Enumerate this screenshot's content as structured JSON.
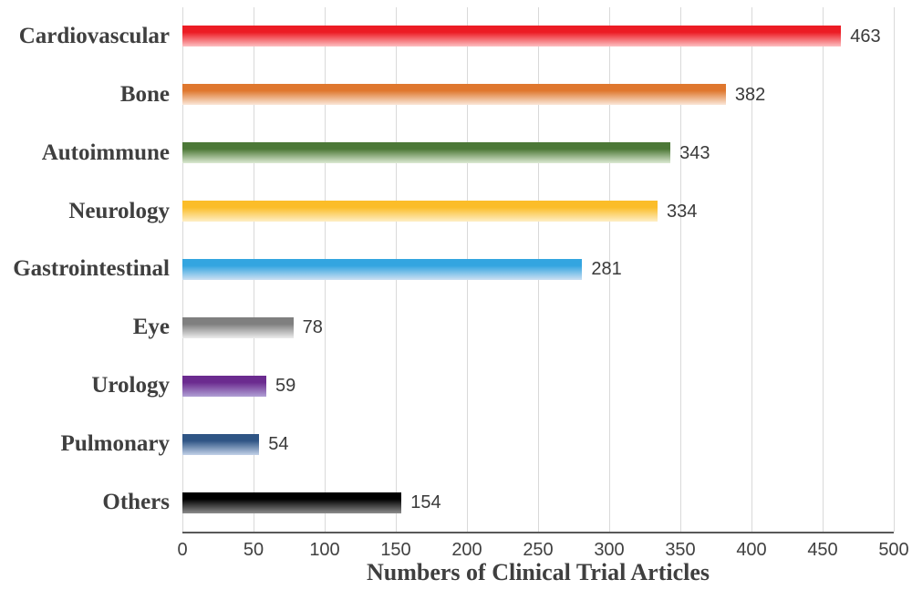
{
  "chart_data": {
    "type": "bar",
    "orientation": "horizontal",
    "title": "",
    "xlabel": "Numbers of Clinical Trial Articles",
    "ylabel": "",
    "xlim": [
      0,
      500
    ],
    "xticks": [
      0,
      50,
      100,
      150,
      200,
      250,
      300,
      350,
      400,
      450,
      500
    ],
    "grid": true,
    "legend": "none",
    "value_labels_shown": true,
    "categories": [
      "Cardiovascular",
      "Bone",
      "Autoimmune",
      "Neurology",
      "Gastrointestinal",
      "Eye",
      "Urology",
      "Pulmonary",
      "Others"
    ],
    "values": [
      463,
      382,
      343,
      334,
      281,
      78,
      59,
      54,
      154
    ],
    "value_labels": [
      "463",
      "382",
      "343",
      "334",
      "281",
      "78",
      "59",
      "54",
      "154"
    ],
    "bar_gradients": [
      {
        "top": "#ec1c24",
        "bottom": "#fdc0c2"
      },
      {
        "top": "#df772e",
        "bottom": "#fae7d8"
      },
      {
        "top": "#4c7837",
        "bottom": "#dcead3"
      },
      {
        "top": "#fbbd29",
        "bottom": "#feefc6"
      },
      {
        "top": "#33a5e0",
        "bottom": "#cde0f2"
      },
      {
        "top": "#7f7f7f",
        "bottom": "#ededed"
      },
      {
        "top": "#6b2b8f",
        "bottom": "#b0a0d5"
      },
      {
        "top": "#2f5585",
        "bottom": "#c2d1e8"
      },
      {
        "top": "#000000",
        "bottom": "#8c8c8c"
      }
    ]
  },
  "colors": {
    "background": "#ffffff",
    "gridline": "#d9d9d9",
    "axis_line": "#595959",
    "category_text": "#3f3f3f",
    "value_text": "#3a3a3a",
    "tick_text": "#404040",
    "title_text": "#3f3f3f"
  }
}
